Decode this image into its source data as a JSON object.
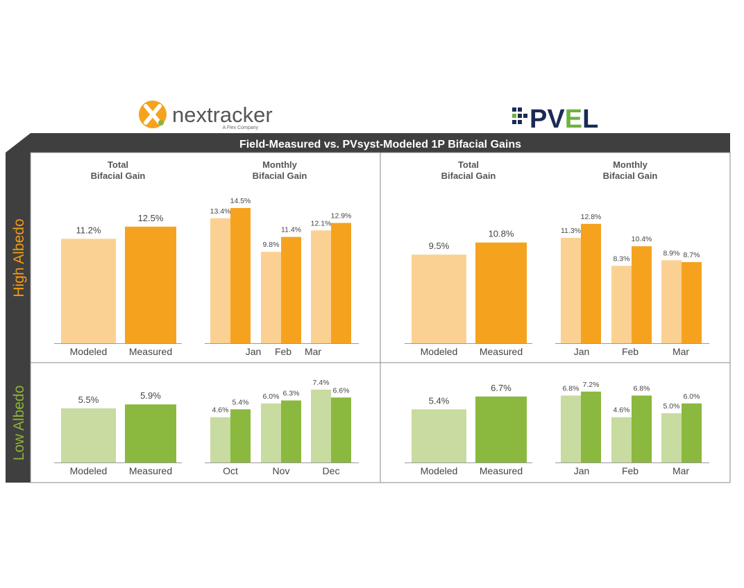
{
  "logos": {
    "left": {
      "name": "nextracker",
      "tagline": "A Flex Company"
    },
    "right": {
      "name": "PVEL"
    }
  },
  "title": "Field-Measured vs. PVsyst-Modeled 1P Bifacial Gains",
  "row_labels": {
    "high": "High Albedo",
    "low": "Low Albedo"
  },
  "panel_headers": {
    "total": [
      "Total",
      "Bifacial Gain"
    ],
    "monthly": [
      "Monthly",
      "Bifacial Gain"
    ]
  },
  "colors": {
    "high_modeled": "#fbd193",
    "high_measured": "#f5a31f",
    "low_modeled": "#c8dba0",
    "low_measured": "#8bb83e",
    "high_label": "#f39c12",
    "low_label": "#8db33a",
    "title_bar": "#3f3f3f"
  },
  "chart_data": [
    {
      "type": "bar",
      "id": "nx-high-total",
      "albedo": "High Albedo",
      "categories": [
        "Modeled",
        "Measured"
      ],
      "values": [
        11.2,
        12.5
      ],
      "labels": [
        "11.2%",
        "12.5%"
      ]
    },
    {
      "type": "bar",
      "id": "nx-high-monthly",
      "albedo": "High Albedo",
      "categories": [
        "Jan",
        "Feb",
        "Mar"
      ],
      "series": [
        {
          "values": [
            13.4,
            9.8,
            12.1
          ],
          "labels": [
            "13.4%",
            "9.8%",
            "12.1%"
          ]
        },
        {
          "values": [
            14.5,
            11.4,
            12.9
          ],
          "labels": [
            "14.5%",
            "11.4%",
            "12.9%"
          ]
        }
      ]
    },
    {
      "type": "bar",
      "id": "pv-high-total",
      "albedo": "High Albedo",
      "categories": [
        "Modeled",
        "Measured"
      ],
      "values": [
        9.5,
        10.8
      ],
      "labels": [
        "9.5%",
        "10.8%"
      ]
    },
    {
      "type": "bar",
      "id": "pv-high-monthly",
      "albedo": "High Albedo",
      "categories": [
        "Jan",
        "Feb",
        "Mar"
      ],
      "series": [
        {
          "values": [
            11.3,
            8.3,
            8.9
          ],
          "labels": [
            "11.3%",
            "8.3%",
            "8.9%"
          ]
        },
        {
          "values": [
            12.8,
            10.4,
            8.7
          ],
          "labels": [
            "12.8%",
            "10.4%",
            "8.7%"
          ]
        }
      ]
    },
    {
      "type": "bar",
      "id": "nx-low-total",
      "albedo": "Low Albedo",
      "categories": [
        "Modeled",
        "Measured"
      ],
      "values": [
        5.5,
        5.9
      ],
      "labels": [
        "5.5%",
        "5.9%"
      ]
    },
    {
      "type": "bar",
      "id": "nx-low-monthly",
      "albedo": "Low Albedo",
      "categories": [
        "Oct",
        "Nov",
        "Dec"
      ],
      "series": [
        {
          "values": [
            4.6,
            6.0,
            7.4
          ],
          "labels": [
            "4.6%",
            "6.0%",
            "7.4%"
          ]
        },
        {
          "values": [
            5.4,
            6.3,
            6.6
          ],
          "labels": [
            "5.4%",
            "6.3%",
            "6.6%"
          ]
        }
      ]
    },
    {
      "type": "bar",
      "id": "pv-low-total",
      "albedo": "Low Albedo",
      "categories": [
        "Modeled",
        "Measured"
      ],
      "values": [
        5.4,
        6.7
      ],
      "labels": [
        "5.4%",
        "6.7%"
      ]
    },
    {
      "type": "bar",
      "id": "pv-low-monthly",
      "albedo": "Low Albedo",
      "categories": [
        "Jan",
        "Feb",
        "Mar"
      ],
      "series": [
        {
          "values": [
            6.8,
            4.6,
            5.0
          ],
          "labels": [
            "6.8%",
            "4.6%",
            "5.0%"
          ]
        },
        {
          "values": [
            7.2,
            6.8,
            6.0
          ],
          "labels": [
            "7.2%",
            "6.8%",
            "6.0%"
          ]
        }
      ]
    }
  ]
}
